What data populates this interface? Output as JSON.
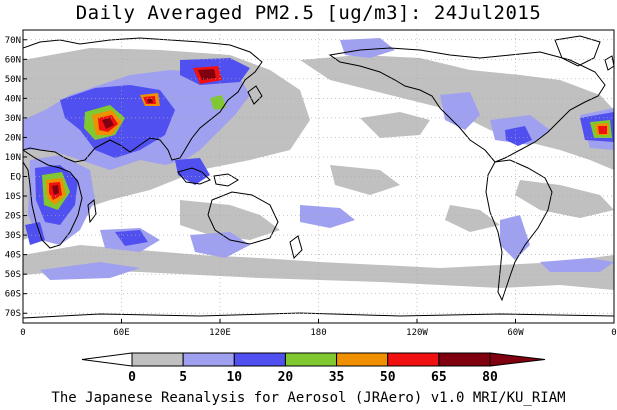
{
  "title": "Daily Averaged PM2.5 [ug/m3]: 24Jul2015",
  "credit": "The Japanese Reanalysis for Aerosol (JRAero) v1.0 MRI/KU_RIAM",
  "map": {
    "lat_labels": [
      "70N",
      "60N",
      "50N",
      "40N",
      "30N",
      "20N",
      "10N",
      "EQ",
      "10S",
      "20S",
      "30S",
      "40S",
      "50S",
      "60S",
      "70S"
    ],
    "lat_values": [
      70,
      60,
      50,
      40,
      30,
      20,
      10,
      0,
      -10,
      -20,
      -30,
      -40,
      -50,
      -60,
      -70
    ],
    "lon_labels": [
      "0",
      "60E",
      "120E",
      "180",
      "120W",
      "60W",
      "0"
    ],
    "lon_values": [
      0,
      60,
      120,
      180,
      240,
      300,
      360
    ]
  },
  "colorbar": {
    "ticks": [
      "0",
      "5",
      "10",
      "20",
      "35",
      "50",
      "65",
      "80"
    ],
    "colors": [
      "#ffffff",
      "#c0c0c0",
      "#a0a0f0",
      "#5050f0",
      "#80c830",
      "#f09000",
      "#f01010",
      "#800010"
    ]
  }
}
